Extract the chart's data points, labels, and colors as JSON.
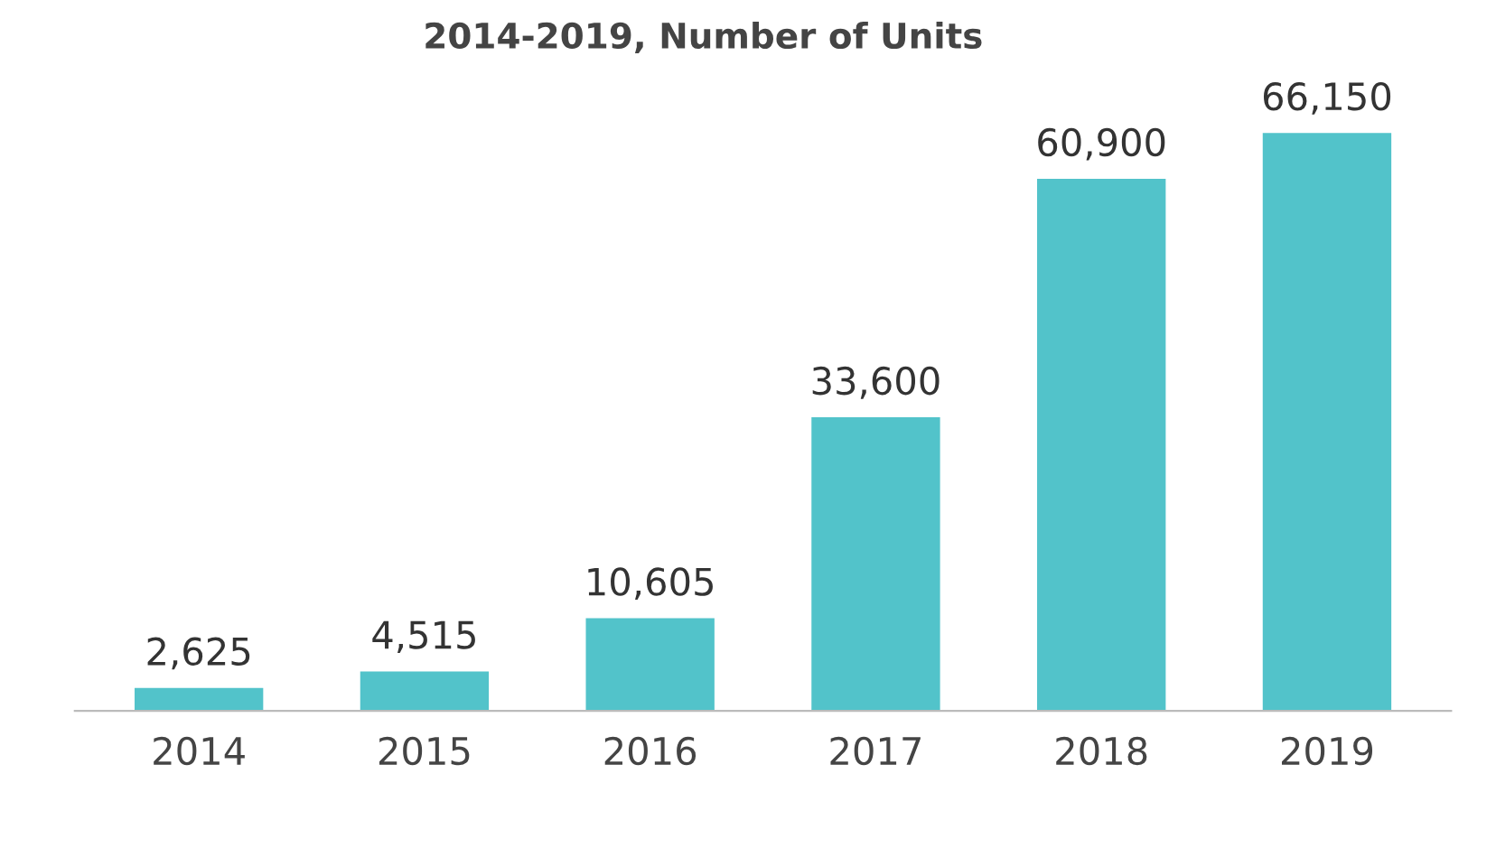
{
  "chart_data": {
    "type": "bar",
    "title": "2014-2019, Number of Units",
    "categories": [
      "2014",
      "2015",
      "2016",
      "2017",
      "2018",
      "2019"
    ],
    "values": [
      2625,
      4515,
      10605,
      33600,
      60900,
      66150
    ],
    "value_labels": [
      "2,625",
      "4,515",
      "10,605",
      "33,600",
      "60,900",
      "66,150"
    ],
    "color": "#52c3ca",
    "grid": false
  }
}
